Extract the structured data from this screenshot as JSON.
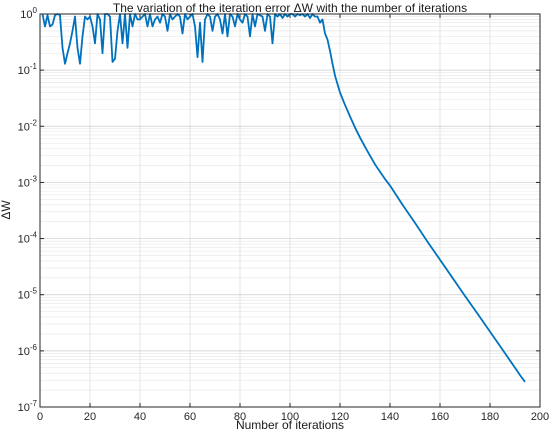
{
  "chart_data": {
    "type": "line",
    "title": "The variation of the iteration error ΔW with the number of iterations",
    "xlabel": "Number of iterations",
    "ylabel": "ΔW",
    "xlim": [
      0,
      200
    ],
    "ylim": [
      1e-07,
      1
    ],
    "yscale": "log",
    "grid": true,
    "minor_grid": true,
    "x_ticks": [
      0,
      20,
      40,
      60,
      80,
      100,
      120,
      140,
      160,
      180,
      200
    ],
    "y_ticks": [
      {
        "base": "10",
        "exp": "0",
        "value": 1
      },
      {
        "base": "10",
        "exp": "-1",
        "value": 0.1
      },
      {
        "base": "10",
        "exp": "-2",
        "value": 0.01
      },
      {
        "base": "10",
        "exp": "-3",
        "value": 0.001
      },
      {
        "base": "10",
        "exp": "-4",
        "value": 0.0001
      },
      {
        "base": "10",
        "exp": "-5",
        "value": 1e-05
      },
      {
        "base": "10",
        "exp": "-6",
        "value": 1e-06
      },
      {
        "base": "10",
        "exp": "-7",
        "value": 1e-07
      }
    ],
    "series": [
      {
        "color": "#0072BD",
        "x": [
          1,
          2,
          3,
          4,
          5,
          6,
          7,
          8,
          9,
          10,
          11,
          12,
          13,
          14,
          15,
          16,
          17,
          18,
          19,
          20,
          21,
          22,
          23,
          24,
          25,
          26,
          27,
          28,
          29,
          30,
          31,
          32,
          33,
          34,
          35,
          36,
          37,
          38,
          39,
          40,
          41,
          42,
          43,
          44,
          45,
          46,
          47,
          48,
          49,
          50,
          51,
          52,
          53,
          54,
          55,
          56,
          57,
          58,
          59,
          60,
          61,
          62,
          63,
          64,
          65,
          66,
          67,
          68,
          69,
          70,
          71,
          72,
          73,
          74,
          75,
          76,
          77,
          78,
          79,
          80,
          81,
          82,
          83,
          84,
          85,
          86,
          87,
          88,
          89,
          90,
          91,
          92,
          93,
          94,
          95,
          96,
          97,
          98,
          99,
          100,
          101,
          102,
          103,
          104,
          105,
          106,
          107,
          108,
          109,
          110,
          111,
          112,
          113,
          114,
          115,
          116,
          117,
          118,
          120,
          122,
          124,
          126,
          128,
          130,
          132,
          134,
          136,
          138,
          140,
          145,
          150,
          155,
          160,
          165,
          170,
          175,
          180,
          185,
          190,
          192,
          194
        ],
        "y": [
          1,
          0.6,
          0.95,
          0.6,
          0.65,
          0.95,
          1,
          0.95,
          0.25,
          0.13,
          0.2,
          0.3,
          0.5,
          0.9,
          0.25,
          0.13,
          0.4,
          0.9,
          0.8,
          0.9,
          0.6,
          0.3,
          1,
          0.8,
          0.2,
          1,
          1,
          0.9,
          0.14,
          0.16,
          0.5,
          1,
          0.3,
          1,
          0.25,
          1,
          0.6,
          1,
          0.8,
          0.8,
          0.9,
          1,
          0.6,
          1,
          0.6,
          0.8,
          0.9,
          0.7,
          1,
          0.9,
          0.5,
          1,
          0.8,
          0.9,
          1,
          0.9,
          0.45,
          1,
          0.8,
          0.9,
          1,
          0.6,
          0.17,
          0.7,
          0.14,
          0.8,
          1,
          0.9,
          0.5,
          0.9,
          1,
          0.8,
          0.45,
          1,
          0.4,
          1,
          0.9,
          0.6,
          1,
          0.8,
          0.7,
          1,
          0.9,
          0.4,
          1,
          0.6,
          1,
          0.95,
          0.9,
          0.5,
          1,
          0.9,
          0.3,
          1,
          0.9,
          1,
          0.85,
          1,
          0.9,
          1,
          1,
          0.9,
          1,
          0.95,
          1,
          0.9,
          1,
          0.85,
          1,
          0.9,
          0.9,
          0.7,
          0.8,
          0.45,
          0.35,
          0.22,
          0.13,
          0.08,
          0.04,
          0.024,
          0.015,
          0.0095,
          0.0063,
          0.0043,
          0.003,
          0.0021,
          0.00155,
          0.00115,
          0.00088,
          0.0004,
          0.00019,
          8.8e-05,
          4.2e-05,
          2e-05,
          9.5e-06,
          4.6e-06,
          2.2e-06,
          1.05e-06,
          5e-07,
          3.7e-07,
          2.8e-07
        ]
      }
    ]
  }
}
